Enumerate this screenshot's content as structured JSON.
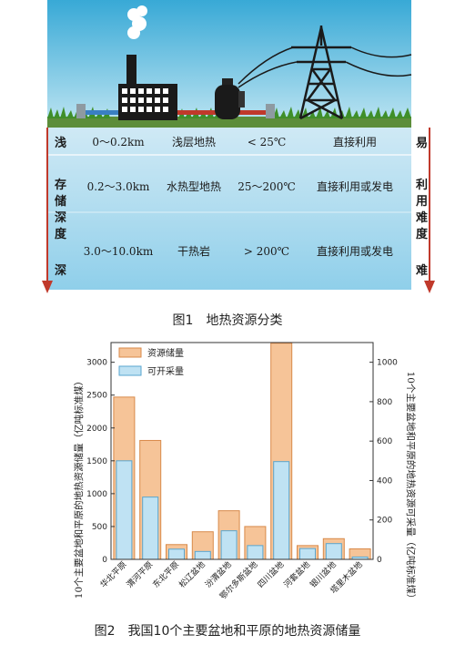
{
  "figure1": {
    "caption": "图1　地热资源分类",
    "left_labels": {
      "shallow": "浅",
      "storage_depth": [
        "存",
        "储",
        "深",
        "度"
      ],
      "deep": "深"
    },
    "right_labels": {
      "easy": "易",
      "difficulty": [
        "利",
        "用",
        "难",
        "度"
      ],
      "hard": "难"
    },
    "rows": [
      {
        "depth": "0～0.2km",
        "type": "浅层地热",
        "temp": "< 25℃",
        "use": "直接利用"
      },
      {
        "depth": "0.2～3.0km",
        "type": "水热型地热",
        "temp": "25～200℃",
        "use": "直接利用或发电"
      },
      {
        "depth": "3.0～10.0km",
        "type": "干热岩",
        "temp": "> 200℃",
        "use": "直接利用或发电"
      }
    ],
    "icons": [
      "factory-icon",
      "heat-pump-icon",
      "power-tower-icon",
      "power-line-icon",
      "pipe-icon"
    ]
  },
  "figure2": {
    "caption": "图2　我国10个主要盆地和平原的地热资源储量",
    "chart_data": {
      "type": "bar",
      "title": "",
      "categories": [
        "华北平原",
        "渭河平原",
        "东北平原",
        "松辽盆地",
        "汾渭盆地",
        "鄂尔多斯盆地",
        "四川盆地",
        "河套盆地",
        "银川盆地",
        "塔里木盆地"
      ],
      "series": [
        {
          "name": "资源储量",
          "axis": "left",
          "values": [
            2470,
            1810,
            225,
            420,
            740,
            500,
            3290,
            210,
            315,
            160
          ],
          "color": "#f6c498"
        },
        {
          "name": "可开采量",
          "axis": "right",
          "values": [
            500,
            316,
            52,
            40,
            145,
            70,
            496,
            55,
            80,
            12
          ],
          "color": "#bfe2f3"
        }
      ],
      "ylabel": "10个主要盆地和平原的地热资源储量（亿吨标准煤）",
      "y2label": "10个主要盆地和平原的地热资源可采量（亿吨标准煤）",
      "ylim": [
        0,
        3300
      ],
      "y2lim": [
        0,
        1100
      ],
      "yticks": [
        0,
        500,
        1000,
        1500,
        2000,
        2500,
        3000
      ],
      "y2ticks": [
        0,
        200,
        400,
        600,
        800,
        1000
      ],
      "grid": false,
      "legend": "top-left"
    }
  }
}
